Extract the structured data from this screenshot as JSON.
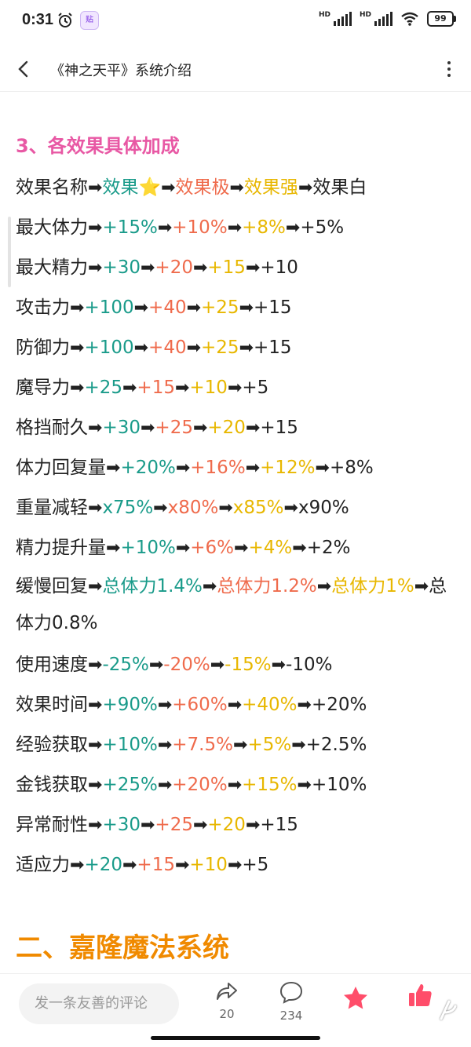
{
  "status": {
    "time": "0:31",
    "battery": "99",
    "hd1": "HD",
    "hd2": "HD",
    "app_chip": "贴"
  },
  "header": {
    "title": "《神之天平》系统介绍"
  },
  "section_title": "3、各效果具体加成",
  "rows": [
    {
      "name": "效果名称",
      "v1": "效果",
      "v1_extra": "⭐",
      "v2": "效果极",
      "v3": "效果强",
      "v4": "效果白"
    },
    {
      "name": "最大体力",
      "v1": "+15%",
      "v2": "+10%",
      "v3": "+8%",
      "v4": "+5%"
    },
    {
      "name": "最大精力",
      "v1": "+30",
      "v2": "+20",
      "v3": "+15",
      "v4": "+10"
    },
    {
      "name": "攻击力",
      "v1": "+100",
      "v2": "+40",
      "v3": "+25",
      "v4": "+15"
    },
    {
      "name": "防御力",
      "v1": "+100",
      "v2": "+40",
      "v3": "+25",
      "v4": "+15"
    },
    {
      "name": "魔导力",
      "v1": "+25",
      "v2": "+15",
      "v3": "+10",
      "v4": "+5"
    },
    {
      "name": "格挡耐久",
      "v1": "+30",
      "v2": "+25",
      "v3": "+20",
      "v4": "+15"
    },
    {
      "name": "体力回复量",
      "v1": "+20%",
      "v2": "+16%",
      "v3": "+12%",
      "v4": "+8%"
    },
    {
      "name": "重量减轻",
      "v1": "x75%",
      "v2": "x80%",
      "v3": "x85%",
      "v4": "x90%"
    },
    {
      "name": "精力提升量",
      "v1": "+10%",
      "v2": "+6%",
      "v3": "+4%",
      "v4": "+2%"
    },
    {
      "name": "缓慢回复",
      "v1": "总体力1.4%",
      "v2": "总体力1.2%",
      "v3": "总体力1%",
      "v4": "总体力0.8%"
    },
    {
      "name": "使用速度",
      "v1": "-25%",
      "v2": "-20%",
      "v3": "-15%",
      "v4": "-10%"
    },
    {
      "name": "效果时间",
      "v1": "+90%",
      "v2": "+60%",
      "v3": "+40%",
      "v4": "+20%"
    },
    {
      "name": "经验获取",
      "v1": "+10%",
      "v2": "+7.5%",
      "v3": "+5%",
      "v4": "+2.5%"
    },
    {
      "name": "金钱获取",
      "v1": "+25%",
      "v2": "+20%",
      "v3": "+15%",
      "v4": "+10%"
    },
    {
      "name": "异常耐性",
      "v1": "+30",
      "v2": "+25",
      "v3": "+20",
      "v4": "+15"
    },
    {
      "name": "适应力",
      "v1": "+20",
      "v2": "+15",
      "v3": "+10",
      "v4": "+5"
    }
  ],
  "arrow_glyph": "➡",
  "next_heading": "二、嘉隆魔法系统",
  "bottom": {
    "comment_placeholder": "发一条友善的评论",
    "share_count": "20",
    "comment_count": "234"
  },
  "watermark": "九游",
  "colors": {
    "tier1": "#1a9b8a",
    "tier2": "#ef6b4c",
    "tier3": "#e8b700",
    "title": "#e858a4",
    "heading": "#f08a00",
    "icon_red": "#ff4d6a"
  },
  "icons": [
    "back-arrow-icon",
    "more-vertical-icon",
    "share-icon",
    "comment-icon",
    "star-icon",
    "thumbs-up-icon",
    "wifi-icon",
    "signal-icon",
    "alarm-icon"
  ]
}
